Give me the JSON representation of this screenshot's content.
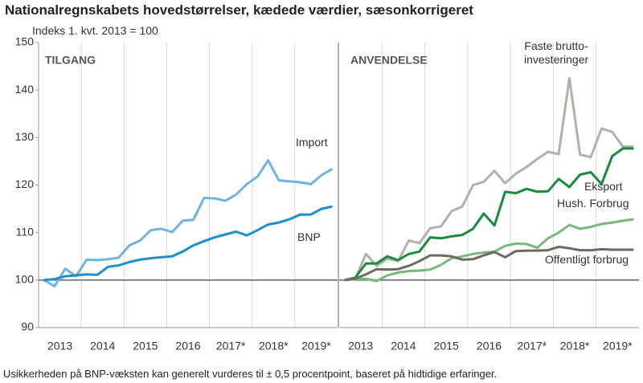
{
  "title": "Nationalregnskabets hovedstørrelser, kædede værdier, sæsonkorrigeret",
  "subtitle": "Indeks 1. kvt. 2013 = 100",
  "note": "Usikkerheden på BNP-væksten kan generelt vurderes til ± 0,5 procentpoint, baseret på hidtidige erfaringer.",
  "chart_data": [
    {
      "type": "line",
      "title": "TILGANG",
      "categories": [
        null,
        "2013",
        null,
        null,
        null,
        "2014",
        null,
        null,
        null,
        "2015",
        null,
        null,
        null,
        "2016",
        null,
        null,
        null,
        "2017*",
        null,
        null,
        null,
        "2018*",
        null,
        null,
        null,
        "2019*",
        null,
        null
      ],
      "ylim": [
        90,
        150
      ],
      "yticks": [
        90,
        100,
        110,
        120,
        130,
        140,
        150
      ],
      "baseline": 100,
      "series": [
        {
          "name": "Import",
          "color": "#6fb3e0",
          "values": [
            100,
            98.7,
            102.4,
            100.8,
            104.3,
            104.2,
            104.4,
            104.7,
            107.3,
            108.3,
            110.5,
            110.8,
            110.1,
            112.5,
            112.7,
            117.3,
            117.2,
            116.7,
            118,
            120.2,
            121.8,
            125.2,
            121,
            120.8,
            120.6,
            120.2,
            122.1,
            123.4
          ]
        },
        {
          "name": "BNP",
          "color": "#1b8fd0",
          "values": [
            100,
            100.2,
            100.8,
            101,
            101.2,
            101.1,
            102.8,
            103.1,
            103.8,
            104.3,
            104.6,
            104.8,
            105,
            106,
            107.3,
            108.2,
            109,
            109.6,
            110.2,
            109.4,
            110.5,
            111.7,
            112.1,
            112.8,
            113.8,
            113.8,
            115,
            115.5
          ]
        }
      ]
    },
    {
      "type": "line",
      "title": "ANVENDELSE",
      "categories": [
        null,
        "2013",
        null,
        null,
        null,
        "2014",
        null,
        null,
        null,
        "2015",
        null,
        null,
        null,
        "2016",
        null,
        null,
        null,
        "2017*",
        null,
        null,
        null,
        "2018*",
        null,
        null,
        null,
        "2019*",
        null,
        null
      ],
      "ylim": [
        90,
        150
      ],
      "baseline": 100,
      "series": [
        {
          "name": "Faste brutto-\ninvesteringer",
          "color": "#b1b1ab",
          "values": [
            100,
            100.3,
            105.5,
            103,
            104.5,
            104,
            108.3,
            107.8,
            110.9,
            111.3,
            114.5,
            115.5,
            120,
            120.7,
            123,
            120.4,
            122.4,
            123.8,
            125.5,
            127,
            126.5,
            142.5,
            126.4,
            125.9,
            131.9,
            131.2,
            128.1,
            128.1
          ]
        },
        {
          "name": "Eksport",
          "color": "#1a8a3c",
          "values": [
            100,
            100.5,
            103.5,
            103.5,
            105,
            104.2,
            105.5,
            106,
            109,
            108.8,
            109.2,
            109.5,
            110.8,
            114,
            111.5,
            118.6,
            118.3,
            119.2,
            118.6,
            118.7,
            121.3,
            119.6,
            122.2,
            122.7,
            120.2,
            126.1,
            127.7,
            127.7
          ]
        },
        {
          "name": "Hush. Forbrug",
          "color": "#79b87d",
          "values": [
            100,
            100.2,
            100.3,
            99.8,
            101,
            101.6,
            101.9,
            102,
            102.2,
            103.2,
            104.6,
            105,
            105.5,
            105.8,
            106,
            107.2,
            107.7,
            107.6,
            106.8,
            108.8,
            110,
            111.6,
            110.8,
            111.2,
            111.8,
            112.1,
            112.5,
            112.8
          ]
        },
        {
          "name": "Offentligt forbrug",
          "color": "#6e6a62",
          "values": [
            100,
            100.3,
            101.2,
            102.3,
            102.2,
            102.3,
            103,
            104,
            105.2,
            105.2,
            105,
            104.3,
            104.4,
            105.2,
            105.9,
            104.8,
            106.1,
            106.2,
            106.2,
            106.3,
            107,
            106.7,
            106.3,
            106.3,
            106.5,
            106.4,
            106.4,
            106.4
          ]
        }
      ]
    }
  ]
}
